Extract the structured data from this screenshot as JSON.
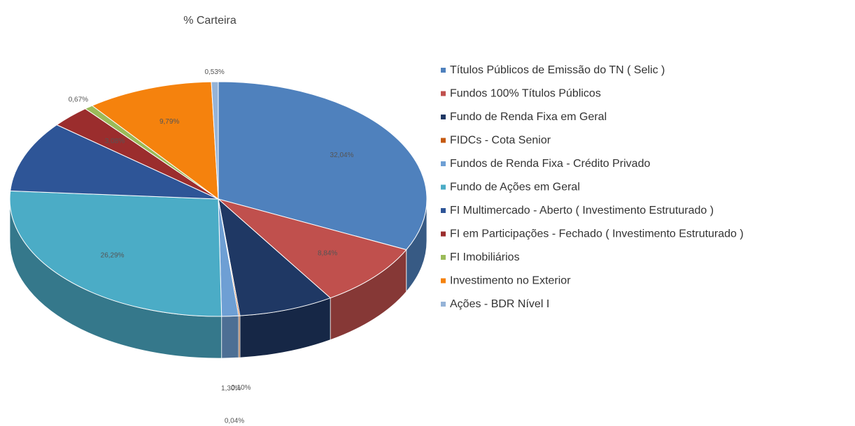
{
  "chart_data": {
    "type": "pie3d",
    "title": "% Carteira",
    "categories": [
      "Títulos Públicos de Emissão do TN ( Selic )",
      "Fundos  100% Títulos Públicos",
      "Fundo de Renda Fixa em Geral",
      "FIDCs - Cota Senior",
      "Fundos de Renda Fixa - Crédito Privado",
      "Fundo de Ações em Geral",
      "FI Multimercado - Aberto ( Investimento Estruturado )",
      "FI em Participações - Fechado ( Investimento Estruturado )",
      "FI Imobiliários",
      "Investimento no Exterior",
      "Ações - BDR Nível I"
    ],
    "values": [
      32.04,
      8.84,
      7.36,
      0.1,
      1.3,
      26.29,
      9.78,
      3.08,
      0.67,
      9.79,
      0.53
    ],
    "value_labels": [
      "32,04%",
      "8,84%",
      null,
      "0,10%",
      "1,30%",
      "26,29%",
      null,
      "3,08%",
      "0,67%",
      "9,79%",
      "0,53%"
    ],
    "colors": [
      "#4f81bd",
      "#c0504d",
      "#1f3864",
      "#c55a11",
      "#6e9fd4",
      "#4bacc6",
      "#2e5597",
      "#9b2d2d",
      "#9bbb59",
      "#f5820d",
      "#95b3d7"
    ],
    "annotations": [
      "0,04%"
    ]
  }
}
